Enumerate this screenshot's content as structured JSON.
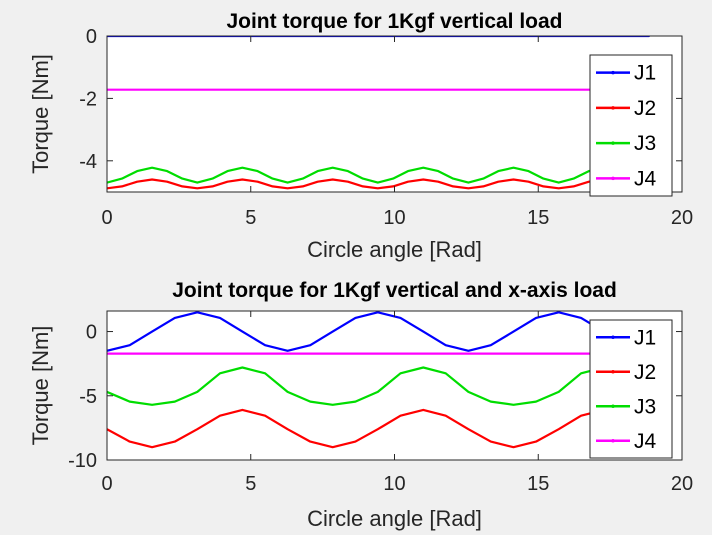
{
  "chart_data": [
    {
      "type": "line",
      "title": "Joint torque for 1Kgf vertical load",
      "xlabel": "Circle angle [Rad]",
      "ylabel": "Torque [Nm]",
      "xlim": [
        0,
        20
      ],
      "ylim": [
        -5,
        0
      ],
      "xticks": [
        0,
        5,
        10,
        15,
        20
      ],
      "yticks": [
        0,
        -2,
        -4
      ],
      "grid": false,
      "legend_position": "right",
      "x_range": [
        0,
        18.85
      ],
      "series": [
        {
          "name": "J1",
          "color": "#0000ff",
          "values": [
            [
              0,
              0
            ],
            [
              18.85,
              0
            ]
          ]
        },
        {
          "name": "J2",
          "color": "#ff0000",
          "values": [
            [
              0,
              -4.88
            ],
            [
              0.52,
              -4.82
            ],
            [
              1.05,
              -4.67
            ],
            [
              1.57,
              -4.6
            ],
            [
              2.09,
              -4.67
            ],
            [
              2.62,
              -4.82
            ],
            [
              3.14,
              -4.88
            ],
            [
              3.67,
              -4.82
            ],
            [
              4.19,
              -4.67
            ],
            [
              4.71,
              -4.6
            ],
            [
              5.24,
              -4.67
            ],
            [
              5.76,
              -4.82
            ],
            [
              6.28,
              -4.88
            ],
            [
              6.81,
              -4.82
            ],
            [
              7.33,
              -4.67
            ],
            [
              7.85,
              -4.6
            ],
            [
              8.38,
              -4.67
            ],
            [
              8.9,
              -4.82
            ],
            [
              9.42,
              -4.88
            ],
            [
              9.95,
              -4.82
            ],
            [
              10.47,
              -4.67
            ],
            [
              11.0,
              -4.6
            ],
            [
              11.52,
              -4.67
            ],
            [
              12.04,
              -4.82
            ],
            [
              12.57,
              -4.88
            ],
            [
              13.09,
              -4.82
            ],
            [
              13.61,
              -4.67
            ],
            [
              14.14,
              -4.6
            ],
            [
              14.66,
              -4.67
            ],
            [
              15.18,
              -4.82
            ],
            [
              15.71,
              -4.88
            ],
            [
              16.23,
              -4.82
            ],
            [
              16.76,
              -4.67
            ],
            [
              17.28,
              -4.6
            ],
            [
              17.8,
              -4.67
            ],
            [
              18.33,
              -4.82
            ],
            [
              18.85,
              -4.88
            ]
          ]
        },
        {
          "name": "J3",
          "color": "#00dd00",
          "values": [
            [
              0,
              -4.7
            ],
            [
              0.52,
              -4.57
            ],
            [
              1.05,
              -4.33
            ],
            [
              1.57,
              -4.22
            ],
            [
              2.09,
              -4.33
            ],
            [
              2.62,
              -4.57
            ],
            [
              3.14,
              -4.7
            ],
            [
              3.67,
              -4.57
            ],
            [
              4.19,
              -4.33
            ],
            [
              4.71,
              -4.22
            ],
            [
              5.24,
              -4.33
            ],
            [
              5.76,
              -4.57
            ],
            [
              6.28,
              -4.7
            ],
            [
              6.81,
              -4.57
            ],
            [
              7.33,
              -4.33
            ],
            [
              7.85,
              -4.22
            ],
            [
              8.38,
              -4.33
            ],
            [
              8.9,
              -4.57
            ],
            [
              9.42,
              -4.7
            ],
            [
              9.95,
              -4.57
            ],
            [
              10.47,
              -4.33
            ],
            [
              11.0,
              -4.22
            ],
            [
              11.52,
              -4.33
            ],
            [
              12.04,
              -4.57
            ],
            [
              12.57,
              -4.7
            ],
            [
              13.09,
              -4.57
            ],
            [
              13.61,
              -4.33
            ],
            [
              14.14,
              -4.22
            ],
            [
              14.66,
              -4.33
            ],
            [
              15.18,
              -4.57
            ],
            [
              15.71,
              -4.7
            ],
            [
              16.23,
              -4.57
            ],
            [
              16.76,
              -4.33
            ],
            [
              17.28,
              -4.22
            ],
            [
              17.8,
              -4.33
            ],
            [
              18.33,
              -4.57
            ],
            [
              18.85,
              -4.7
            ]
          ]
        },
        {
          "name": "J4",
          "color": "#ff00ff",
          "values": [
            [
              0,
              -1.72
            ],
            [
              18.85,
              -1.72
            ]
          ]
        }
      ]
    },
    {
      "type": "line",
      "title": "Joint torque for 1Kgf vertical and x-axis load",
      "xlabel": "Circle angle [Rad]",
      "ylabel": "Torque [Nm]",
      "xlim": [
        0,
        20
      ],
      "ylim": [
        -10,
        1.6
      ],
      "xticks": [
        0,
        5,
        10,
        15,
        20
      ],
      "yticks": [
        0,
        -5,
        -10
      ],
      "grid": false,
      "legend_position": "right",
      "x_range": [
        0,
        18.85
      ],
      "series": [
        {
          "name": "J1",
          "color": "#0000ff",
          "values": [
            [
              0,
              -1.5
            ],
            [
              0.79,
              -1.06
            ],
            [
              1.57,
              0.0
            ],
            [
              2.36,
              1.06
            ],
            [
              3.14,
              1.5
            ],
            [
              3.93,
              1.06
            ],
            [
              4.71,
              0.0
            ],
            [
              5.5,
              -1.06
            ],
            [
              6.28,
              -1.5
            ],
            [
              7.07,
              -1.06
            ],
            [
              7.85,
              0.0
            ],
            [
              8.64,
              1.06
            ],
            [
              9.42,
              1.5
            ],
            [
              10.21,
              1.06
            ],
            [
              11.0,
              0.0
            ],
            [
              11.78,
              -1.06
            ],
            [
              12.57,
              -1.5
            ],
            [
              13.35,
              -1.06
            ],
            [
              14.14,
              0.0
            ],
            [
              14.92,
              1.06
            ],
            [
              15.71,
              1.5
            ],
            [
              16.49,
              1.06
            ],
            [
              17.28,
              0.0
            ],
            [
              18.06,
              -1.06
            ],
            [
              18.85,
              -1.5
            ]
          ]
        },
        {
          "name": "J2",
          "color": "#ff0000",
          "values": [
            [
              0,
              -7.6
            ],
            [
              0.79,
              -8.57
            ],
            [
              1.57,
              -9.0
            ],
            [
              2.36,
              -8.57
            ],
            [
              3.14,
              -7.6
            ],
            [
              3.93,
              -6.55
            ],
            [
              4.71,
              -6.1
            ],
            [
              5.5,
              -6.55
            ],
            [
              6.28,
              -7.6
            ],
            [
              7.07,
              -8.57
            ],
            [
              7.85,
              -9.0
            ],
            [
              8.64,
              -8.57
            ],
            [
              9.42,
              -7.6
            ],
            [
              10.21,
              -6.55
            ],
            [
              11.0,
              -6.1
            ],
            [
              11.78,
              -6.55
            ],
            [
              12.57,
              -7.6
            ],
            [
              13.35,
              -8.57
            ],
            [
              14.14,
              -9.0
            ],
            [
              14.92,
              -8.57
            ],
            [
              15.71,
              -7.6
            ],
            [
              16.49,
              -6.55
            ],
            [
              17.28,
              -6.1
            ],
            [
              18.06,
              -6.55
            ],
            [
              18.85,
              -7.6
            ]
          ]
        },
        {
          "name": "J3",
          "color": "#00dd00",
          "values": [
            [
              0,
              -4.7
            ],
            [
              0.79,
              -5.45
            ],
            [
              1.57,
              -5.7
            ],
            [
              2.36,
              -5.45
            ],
            [
              3.14,
              -4.7
            ],
            [
              3.93,
              -3.25
            ],
            [
              4.71,
              -2.8
            ],
            [
              5.5,
              -3.25
            ],
            [
              6.28,
              -4.7
            ],
            [
              7.07,
              -5.45
            ],
            [
              7.85,
              -5.7
            ],
            [
              8.64,
              -5.45
            ],
            [
              9.42,
              -4.7
            ],
            [
              10.21,
              -3.25
            ],
            [
              11.0,
              -2.8
            ],
            [
              11.78,
              -3.25
            ],
            [
              12.57,
              -4.7
            ],
            [
              13.35,
              -5.45
            ],
            [
              14.14,
              -5.7
            ],
            [
              14.92,
              -5.45
            ],
            [
              15.71,
              -4.7
            ],
            [
              16.49,
              -3.25
            ],
            [
              17.28,
              -2.8
            ],
            [
              18.06,
              -3.25
            ],
            [
              18.85,
              -4.7
            ]
          ]
        },
        {
          "name": "J4",
          "color": "#ff00ff",
          "values": [
            [
              0,
              -1.72
            ],
            [
              18.85,
              -1.72
            ]
          ]
        }
      ]
    }
  ]
}
